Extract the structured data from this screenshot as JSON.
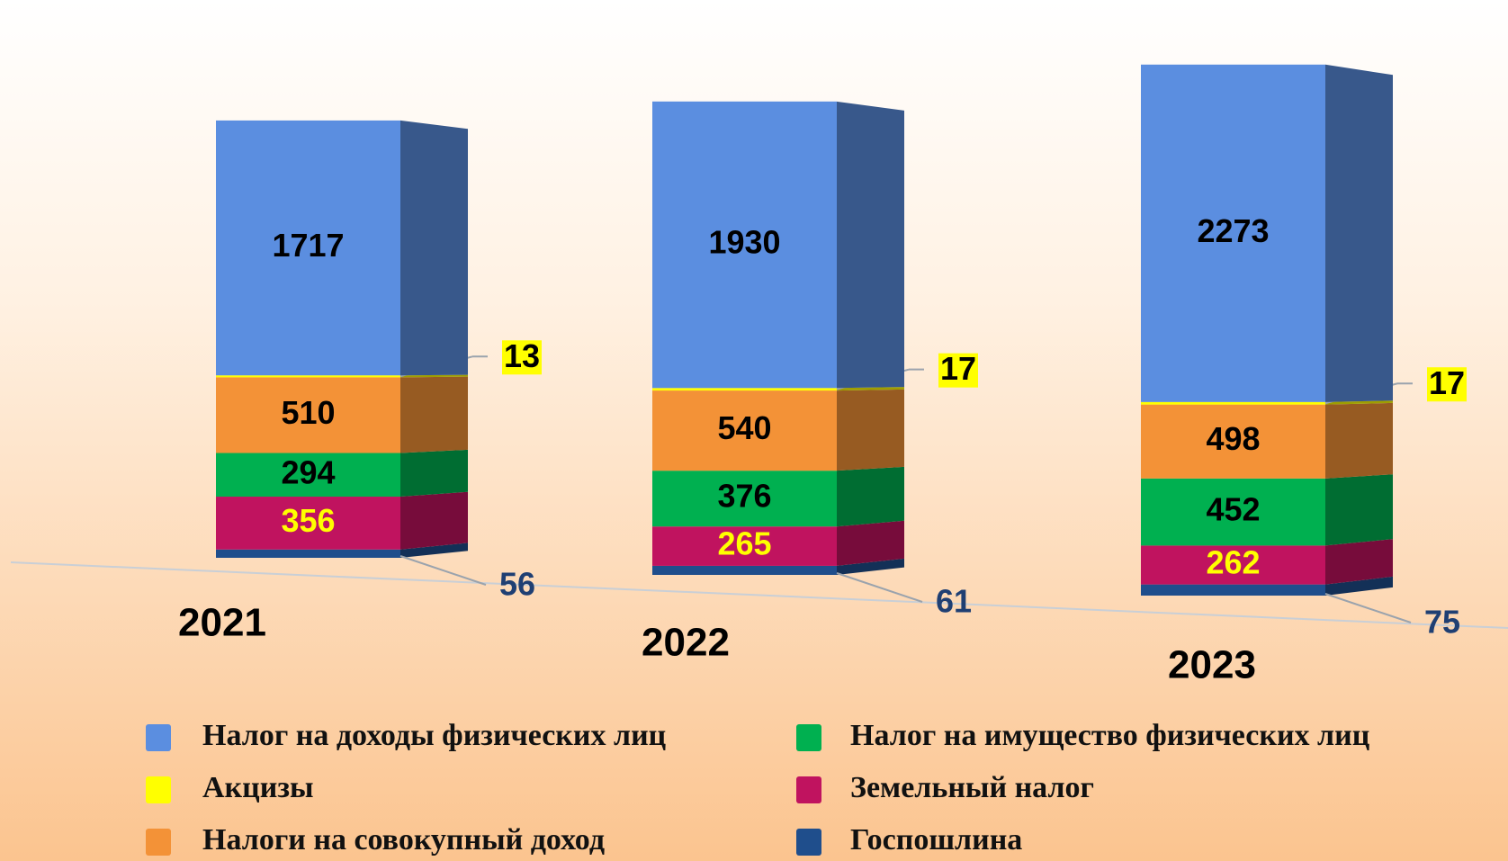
{
  "chart_data": {
    "type": "bar3d_stacked",
    "categories": [
      "2021",
      "2022",
      "2023"
    ],
    "series": [
      {
        "name": "Налог на доходы физических лиц",
        "color": "#5b8ee0",
        "label_color": "#000000",
        "values": [
          1717,
          1930,
          2273
        ]
      },
      {
        "name": "Акцизы",
        "color": "#ffff00",
        "label_color": "#000000",
        "values": [
          13,
          17,
          17
        ]
      },
      {
        "name": "Налоги на совокупный доход",
        "color": "#f39237",
        "label_color": "#000000",
        "values": [
          510,
          540,
          498
        ]
      },
      {
        "name": "Налог на имущество физических лиц",
        "color": "#00b050",
        "label_color": "#000000",
        "values": [
          294,
          376,
          452
        ]
      },
      {
        "name": "Земельный налог",
        "color": "#c0135f",
        "label_color": "#ffff00",
        "values": [
          356,
          265,
          262
        ]
      },
      {
        "name": "Госпошлина",
        "color": "#1f4e8c",
        "label_color": "#1f3f73",
        "values": [
          56,
          61,
          75
        ]
      }
    ],
    "legend": "bottom"
  }
}
